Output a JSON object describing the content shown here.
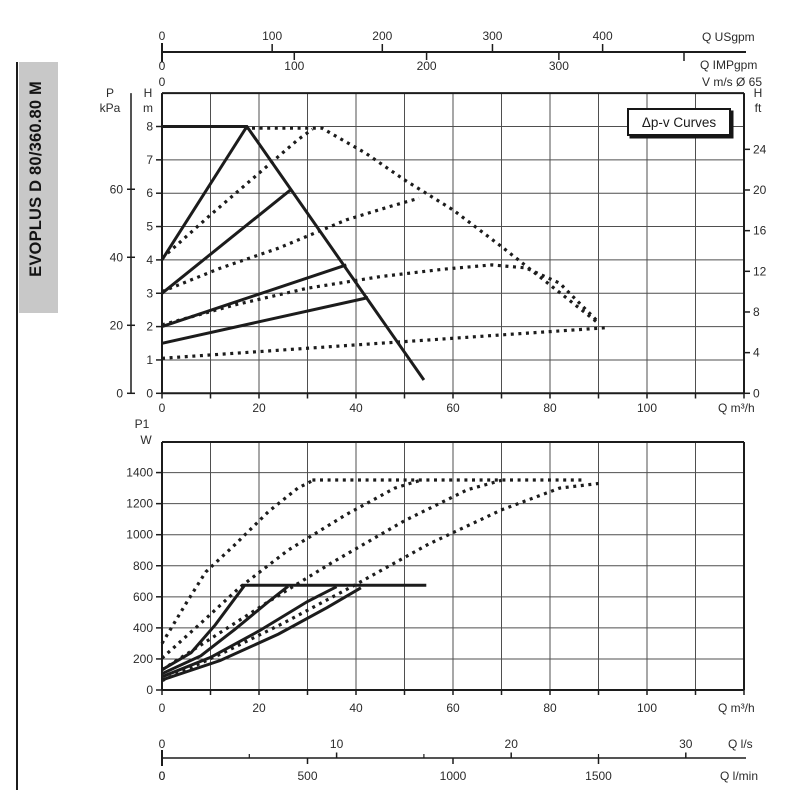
{
  "sidebar": {
    "title": "EVOPLUS D 80/360.80 M"
  },
  "annotation": {
    "label": "Δp-v Curves"
  },
  "colors": {
    "curve": "#1c1c1c",
    "grid": "#4f4f4f",
    "frame": "#1c1c1c",
    "text": "#2b2b2b",
    "sidebar_bg": "#c8c8c8",
    "background": "#ffffff"
  },
  "top_axes": {
    "usgpm": {
      "title": "Q USgpm",
      "ticks": [
        0,
        100,
        200,
        300,
        400
      ]
    },
    "impgpm": {
      "title": "Q IMPgpm",
      "ticks": [
        0,
        100,
        200,
        300
      ]
    },
    "velocity": {
      "title": "V m/s Ø 65",
      "zero_label": "0"
    }
  },
  "chart_data": [
    {
      "type": "line",
      "name": "head-flow-chart",
      "x": {
        "label": "Q m³/h",
        "min": 0,
        "max": 120,
        "grid_step": 10,
        "tick_labels": [
          0,
          20,
          40,
          60,
          80,
          100
        ]
      },
      "y_m": {
        "label_top": "H",
        "label_unit": "m",
        "min": 0,
        "max": 9,
        "ticks": [
          0,
          1,
          2,
          3,
          4,
          5,
          6,
          7,
          8
        ]
      },
      "y_kpa": {
        "label_top": "P",
        "label_unit": "kPa",
        "ticks": [
          0,
          20,
          40,
          60
        ]
      },
      "y_ft": {
        "label_top": "H",
        "label_unit": "ft",
        "ticks": [
          0,
          4,
          8,
          12,
          16,
          20,
          24
        ]
      },
      "series": [
        {
          "name": "max-speed-curve",
          "style": "solid",
          "points": [
            [
              0,
              8
            ],
            [
              17.5,
              8
            ],
            [
              54,
              0.4
            ]
          ]
        },
        {
          "name": "dpv-line-1",
          "style": "solid",
          "points": [
            [
              0,
              4
            ],
            [
              17.5,
              8
            ]
          ]
        },
        {
          "name": "dpv-line-2",
          "style": "solid",
          "points": [
            [
              0,
              3
            ],
            [
              26.5,
              6.1
            ]
          ]
        },
        {
          "name": "dpv-line-3",
          "style": "solid",
          "points": [
            [
              0,
              2
            ],
            [
              38,
              3.85
            ]
          ]
        },
        {
          "name": "dpv-line-4",
          "style": "solid",
          "points": [
            [
              0,
              1.5
            ],
            [
              42.5,
              2.87
            ]
          ]
        },
        {
          "name": "twin-max-curve",
          "style": "dotted",
          "points": [
            [
              17,
              7.95
            ],
            [
              33,
              7.95
            ],
            [
              42,
              7.2
            ],
            [
              50,
              6.4
            ],
            [
              60,
              5.5
            ],
            [
              70,
              4.4
            ],
            [
              80,
              3.25
            ],
            [
              90,
              2.1
            ]
          ]
        },
        {
          "name": "twin-dpv-line-1",
          "style": "dotted",
          "points": [
            [
              0,
              4.05
            ],
            [
              10,
              5.35
            ],
            [
              20,
              6.6
            ],
            [
              28,
              7.6
            ],
            [
              31,
              7.92
            ]
          ]
        },
        {
          "name": "twin-dpv-line-2",
          "style": "dotted",
          "points": [
            [
              0,
              3.05
            ],
            [
              12,
              3.75
            ],
            [
              24,
              4.35
            ],
            [
              38,
              5.2
            ],
            [
              47,
              5.6
            ],
            [
              53,
              5.85
            ]
          ]
        },
        {
          "name": "twin-dpv-line-3",
          "style": "dotted",
          "points": [
            [
              0,
              2.05
            ],
            [
              15,
              2.65
            ],
            [
              30,
              3.15
            ],
            [
              45,
              3.5
            ],
            [
              58,
              3.72
            ],
            [
              68,
              3.85
            ],
            [
              75,
              3.76
            ],
            [
              82,
              3.3
            ],
            [
              89.5,
              2.2
            ]
          ]
        },
        {
          "name": "twin-min-curve",
          "style": "dotted",
          "points": [
            [
              0,
              1.05
            ],
            [
              20,
              1.25
            ],
            [
              40,
              1.45
            ],
            [
              57,
              1.62
            ],
            [
              70,
              1.75
            ],
            [
              80,
              1.85
            ],
            [
              92,
              1.97
            ]
          ]
        }
      ]
    },
    {
      "type": "line",
      "name": "power-flow-chart",
      "x": {
        "label": "Q m³/h",
        "min": 0,
        "max": 120,
        "grid_step": 10,
        "tick_labels": [
          0,
          20,
          40,
          60,
          80,
          100
        ]
      },
      "y_w": {
        "label_top": "P1",
        "label_unit": "W",
        "min": 0,
        "max": 1600,
        "grid_step": 200,
        "ticks": [
          0,
          200,
          400,
          600,
          800,
          1000,
          1200,
          1400
        ]
      },
      "x_ls": {
        "label": "Q l/s",
        "ticks": [
          0,
          10,
          20,
          30
        ],
        "minor_ticks": [
          5,
          15,
          25
        ]
      },
      "x_lmin": {
        "label": "Q l/min",
        "ticks": [
          0,
          500,
          1000,
          1500
        ]
      },
      "series": [
        {
          "name": "p-dpv-1",
          "style": "solid",
          "points": [
            [
              0,
              130
            ],
            [
              6,
              240
            ],
            [
              11,
              420
            ],
            [
              15.5,
              610
            ],
            [
              17,
              672
            ]
          ]
        },
        {
          "name": "p-dpv-2",
          "style": "solid",
          "points": [
            [
              0,
              105
            ],
            [
              8,
              220
            ],
            [
              15,
              390
            ],
            [
              22,
              570
            ],
            [
              26,
              668
            ]
          ]
        },
        {
          "name": "p-dpv-3",
          "style": "solid",
          "points": [
            [
              0,
              85
            ],
            [
              10,
              210
            ],
            [
              20,
              380
            ],
            [
              30,
              570
            ],
            [
              36,
              665
            ]
          ]
        },
        {
          "name": "p-dpv-4",
          "style": "solid",
          "points": [
            [
              0,
              65
            ],
            [
              12,
              190
            ],
            [
              24,
              360
            ],
            [
              34,
              530
            ],
            [
              41,
              658
            ]
          ]
        },
        {
          "name": "p-max-flat",
          "style": "solid",
          "points": [
            [
              16.5,
              675
            ],
            [
              54.5,
              675
            ]
          ]
        },
        {
          "name": "p-twin-1",
          "style": "dotted",
          "points": [
            [
              0,
              300
            ],
            [
              5,
              560
            ],
            [
              9,
              760
            ],
            [
              15,
              935
            ],
            [
              22,
              1150
            ],
            [
              28,
              1300
            ],
            [
              31,
              1348
            ]
          ]
        },
        {
          "name": "p-twin-2",
          "style": "dotted",
          "points": [
            [
              0,
              205
            ],
            [
              8,
              430
            ],
            [
              16,
              660
            ],
            [
              26,
              900
            ],
            [
              38,
              1130
            ],
            [
              48,
              1300
            ],
            [
              53,
              1348
            ]
          ]
        },
        {
          "name": "p-twin-3",
          "style": "dotted",
          "points": [
            [
              0,
              130
            ],
            [
              10,
              330
            ],
            [
              22,
              570
            ],
            [
              35,
              820
            ],
            [
              50,
              1090
            ],
            [
              63,
              1290
            ],
            [
              70,
              1350
            ]
          ]
        },
        {
          "name": "p-twin-4",
          "style": "dotted",
          "points": [
            [
              0,
              60
            ],
            [
              12,
              230
            ],
            [
              25,
              430
            ],
            [
              40,
              680
            ],
            [
              55,
              940
            ],
            [
              70,
              1160
            ],
            [
              82,
              1300
            ],
            [
              90,
              1330
            ]
          ]
        },
        {
          "name": "p-twin-max-flat",
          "style": "dotted",
          "points": [
            [
              31,
              1352
            ],
            [
              87,
              1352
            ]
          ]
        }
      ]
    }
  ]
}
